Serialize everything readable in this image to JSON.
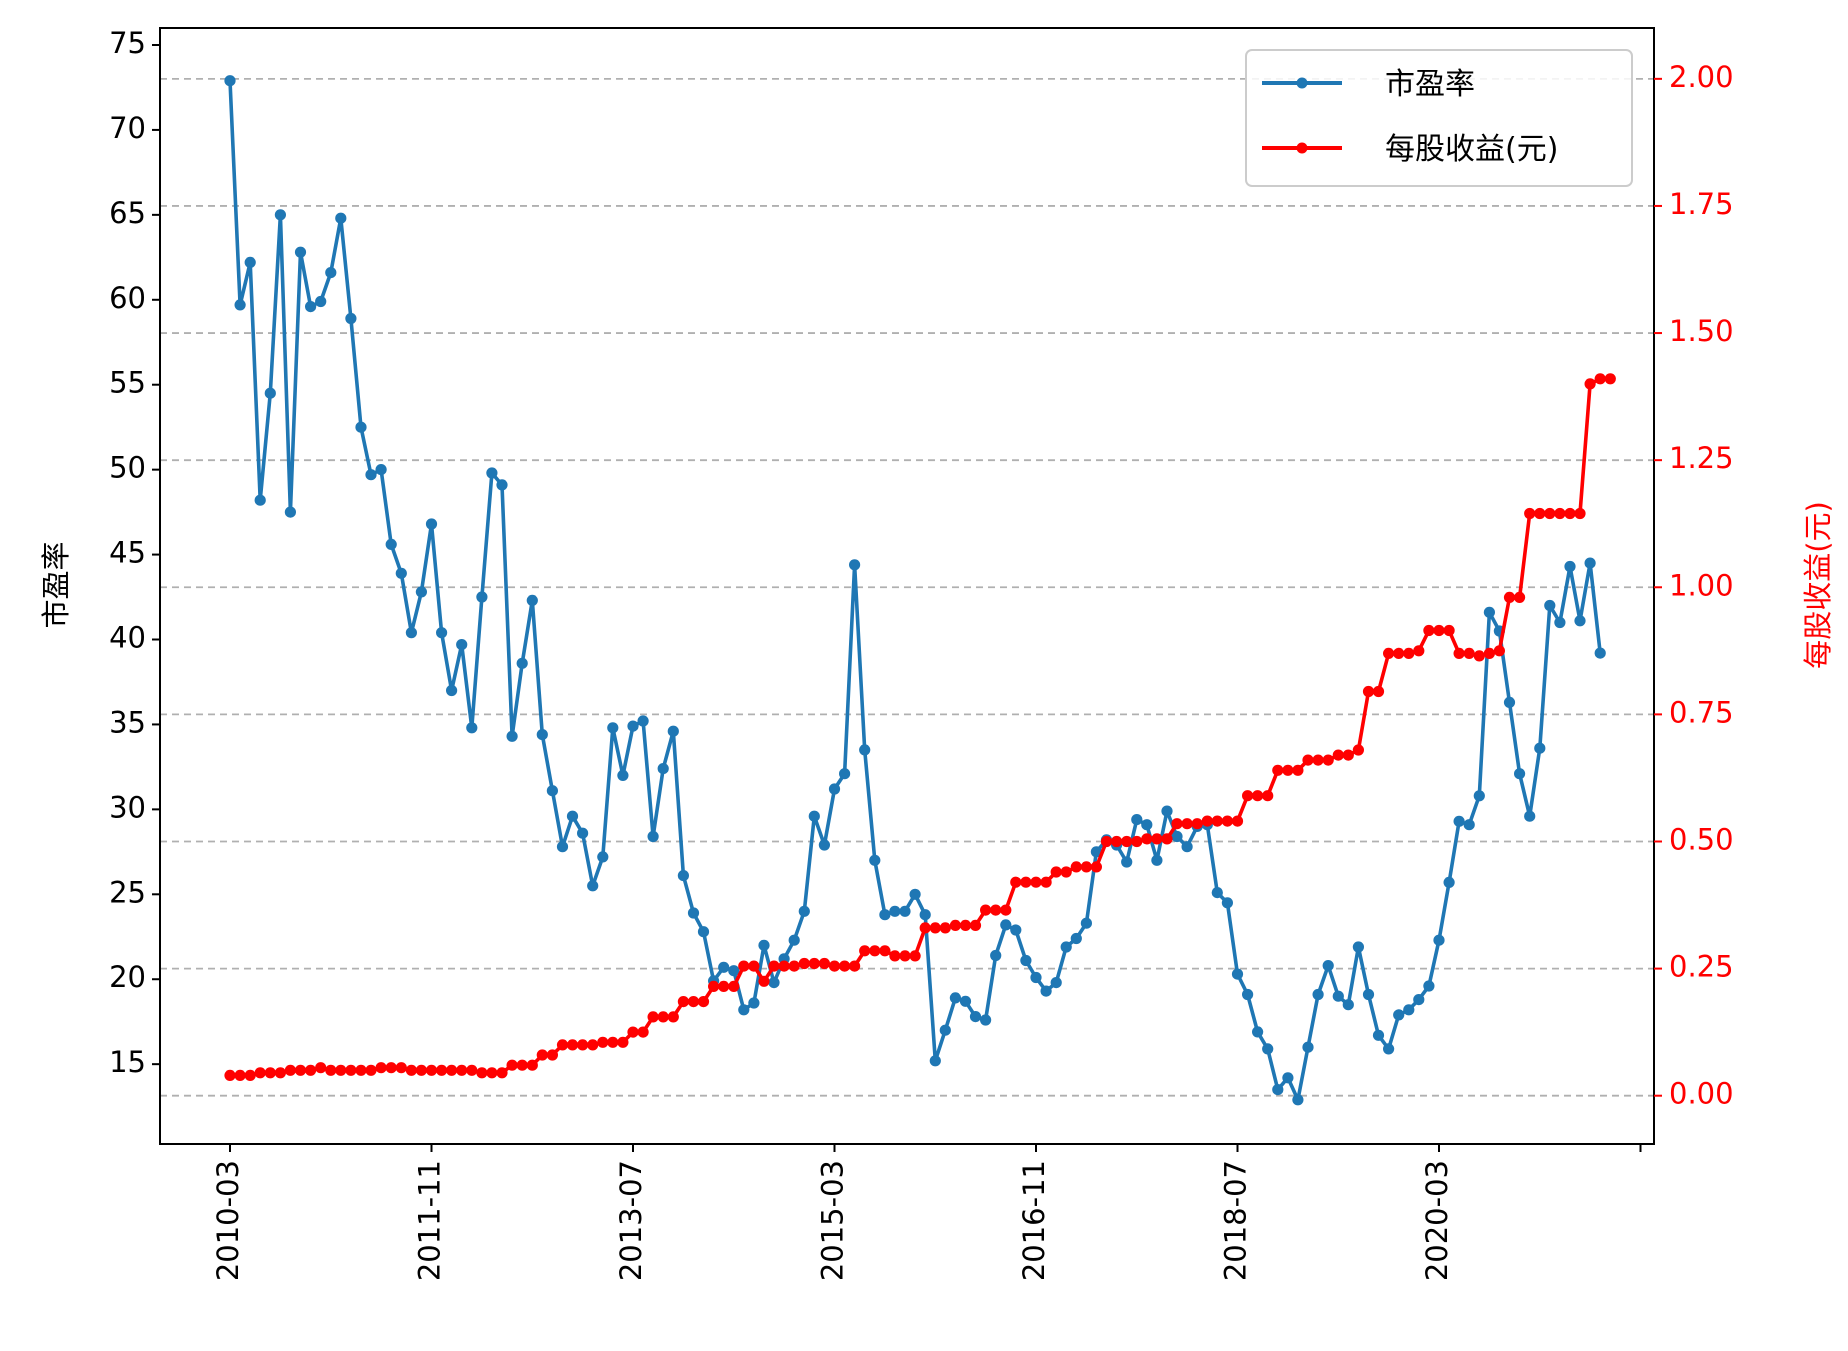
{
  "chart_data": {
    "type": "line",
    "dual_axis": true,
    "x_ticks": [
      "2010-03",
      "2011-11",
      "2013-07",
      "2015-03",
      "2016-11",
      "2018-07",
      "2020-03"
    ],
    "x_range_months": [
      0,
      140
    ],
    "y_left": {
      "label": "市盈率",
      "ticks": [
        15,
        20,
        25,
        30,
        35,
        40,
        45,
        50,
        55,
        60,
        65,
        70,
        75
      ],
      "range": [
        10.3,
        76.0
      ]
    },
    "y_right": {
      "label": "每股收益(元)",
      "ticks": [
        "0.00",
        "0.25",
        "0.50",
        "0.75",
        "1.00",
        "1.25",
        "1.50",
        "1.75",
        "2.00"
      ],
      "range": [
        -0.095,
        2.1
      ],
      "color": "#ff0000"
    },
    "grid": "horizontal-dashed",
    "legend_position": "top-right",
    "series": [
      {
        "name": "市盈率",
        "axis": "left",
        "color": "#1f77b4",
        "values": [
          72.9,
          59.7,
          62.2,
          48.2,
          54.5,
          65.0,
          47.5,
          62.8,
          59.6,
          59.9,
          61.6,
          64.8,
          58.9,
          52.5,
          49.7,
          50.0,
          45.6,
          43.9,
          40.4,
          42.8,
          46.8,
          40.4,
          37.0,
          39.7,
          34.8,
          42.5,
          49.8,
          49.1,
          34.3,
          38.6,
          42.3,
          34.4,
          31.1,
          27.8,
          29.6,
          28.6,
          25.5,
          27.2,
          34.8,
          32.0,
          34.9,
          35.2,
          28.4,
          32.4,
          34.6,
          26.1,
          23.9,
          22.8,
          19.9,
          20.7,
          20.5,
          18.2,
          18.6,
          22.0,
          19.8,
          21.2,
          22.3,
          24.0,
          29.6,
          27.9,
          31.2,
          32.1,
          44.4,
          33.5,
          27.0,
          23.8,
          24.0,
          24.0,
          25.0,
          23.8,
          15.2,
          17.0,
          18.9,
          18.7,
          17.8,
          17.6,
          21.4,
          23.2,
          22.9,
          21.1,
          20.1,
          19.3,
          19.8,
          21.9,
          22.4,
          23.3,
          27.5,
          28.2,
          27.9,
          26.9,
          29.4,
          29.1,
          27.0,
          29.9,
          28.4,
          27.8,
          29.0,
          29.1,
          25.1,
          24.5,
          20.3,
          19.1,
          16.9,
          15.9,
          13.5,
          14.2,
          12.9,
          16.0,
          19.1,
          20.8,
          19.0,
          18.5,
          21.9,
          19.1,
          16.7,
          15.9,
          17.9,
          18.2,
          18.8,
          19.6,
          22.3,
          25.7,
          29.3,
          29.1,
          30.8,
          41.6,
          40.5,
          36.3,
          32.1,
          29.6,
          33.6,
          42.0,
          41.0,
          44.3,
          41.1,
          44.5,
          39.2
        ],
        "x_step": 1
      },
      {
        "name": "每股收益(元)",
        "axis": "right",
        "color": "#ff0000",
        "values": [
          0.04,
          0.04,
          0.04,
          0.045,
          0.045,
          0.045,
          0.05,
          0.05,
          0.05,
          0.055,
          0.05,
          0.05,
          0.05,
          0.05,
          0.05,
          0.055,
          0.055,
          0.055,
          0.05,
          0.05,
          0.05,
          0.05,
          0.05,
          0.05,
          0.05,
          0.045,
          0.045,
          0.045,
          0.06,
          0.06,
          0.06,
          0.08,
          0.08,
          0.1,
          0.1,
          0.1,
          0.1,
          0.105,
          0.105,
          0.105,
          0.125,
          0.125,
          0.155,
          0.155,
          0.155,
          0.185,
          0.185,
          0.185,
          0.215,
          0.215,
          0.215,
          0.255,
          0.255,
          0.225,
          0.255,
          0.255,
          0.255,
          0.26,
          0.26,
          0.26,
          0.255,
          0.255,
          0.255,
          0.285,
          0.285,
          0.285,
          0.275,
          0.275,
          0.275,
          0.33,
          0.33,
          0.33,
          0.335,
          0.335,
          0.335,
          0.365,
          0.365,
          0.365,
          0.42,
          0.42,
          0.42,
          0.42,
          0.44,
          0.44,
          0.45,
          0.45,
          0.45,
          0.5,
          0.5,
          0.5,
          0.5,
          0.505,
          0.505,
          0.505,
          0.535,
          0.535,
          0.535,
          0.54,
          0.54,
          0.54,
          0.54,
          0.59,
          0.59,
          0.59,
          0.64,
          0.64,
          0.64,
          0.66,
          0.66,
          0.66,
          0.67,
          0.67,
          0.68,
          0.795,
          0.795,
          0.87,
          0.87,
          0.87,
          0.875,
          0.915,
          0.915,
          0.915,
          0.87,
          0.87,
          0.865,
          0.87,
          0.875,
          0.98,
          0.98,
          1.145,
          1.145,
          1.145,
          1.145,
          1.145,
          1.145,
          1.4,
          1.41,
          1.41
        ],
        "x_step": 1
      }
    ]
  }
}
